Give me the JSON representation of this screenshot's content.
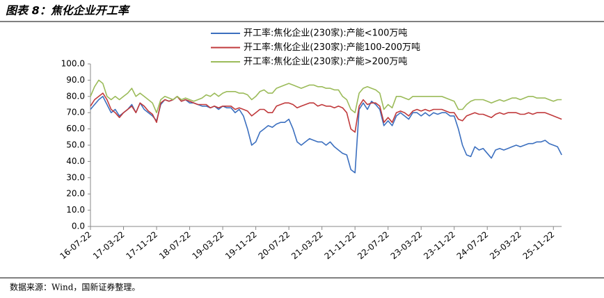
{
  "chart_data": {
    "type": "line",
    "title": "图表 8：焦化企业开工率",
    "source": "数据来源：Wind，国新证券整理。",
    "categories": [
      "16-07-22",
      null,
      null,
      null,
      null,
      null,
      null,
      null,
      "17-03-22",
      null,
      null,
      null,
      null,
      null,
      null,
      null,
      "17-11-22",
      null,
      null,
      null,
      null,
      null,
      null,
      null,
      "18-07-22",
      null,
      null,
      null,
      null,
      null,
      null,
      null,
      "19-03-22",
      null,
      null,
      null,
      null,
      null,
      null,
      null,
      "19-11-22",
      null,
      null,
      null,
      null,
      null,
      null,
      null,
      "20-07-22",
      null,
      null,
      null,
      null,
      null,
      null,
      null,
      "21-03-22",
      null,
      null,
      null,
      null,
      null,
      null,
      null,
      "21-11-22",
      null,
      null,
      null,
      null,
      null,
      null,
      null,
      "22-07-22",
      null,
      null,
      null,
      null,
      null,
      null,
      null,
      "23-03-22",
      null,
      null,
      null,
      null,
      null,
      null,
      null,
      "23-11-22",
      null,
      null,
      null,
      null,
      null,
      null,
      null,
      "24-07-22",
      null,
      null,
      null,
      null,
      null,
      null,
      null,
      "25-03-22",
      null,
      null,
      null,
      null,
      null,
      null,
      null,
      "25-11-22",
      null,
      null
    ],
    "series": [
      {
        "name": "开工率:焦化企业(230家):产能<100万吨",
        "color": "#3b6fbf",
        "values": [
          72,
          75,
          78,
          80,
          75,
          70,
          72,
          68,
          70,
          72,
          75,
          70,
          76,
          72,
          70,
          68,
          65,
          75,
          78,
          77,
          78,
          80,
          77,
          78,
          76,
          76,
          75,
          74,
          74,
          73,
          74,
          72,
          74,
          73,
          73,
          70,
          72,
          68,
          60,
          50,
          52,
          58,
          60,
          62,
          61,
          63,
          64,
          64,
          66,
          60,
          52,
          50,
          52,
          54,
          53,
          52,
          52,
          50,
          52,
          49,
          47,
          45,
          44,
          35,
          33,
          72,
          76,
          72,
          77,
          75,
          72,
          62,
          65,
          62,
          68,
          70,
          68,
          66,
          70,
          70,
          68,
          70,
          68,
          70,
          69,
          70,
          70,
          68,
          68,
          60,
          50,
          44,
          43,
          49,
          47,
          48,
          45,
          42,
          47,
          48,
          47,
          48,
          49,
          50,
          49,
          50,
          51,
          51,
          52,
          52,
          53,
          51,
          50,
          49,
          44
        ]
      },
      {
        "name": "开工率:焦化企业(230家):产能100-200万吨",
        "color": "#c0393b",
        "values": [
          74,
          78,
          80,
          82,
          78,
          72,
          70,
          67,
          70,
          72,
          74,
          70,
          76,
          74,
          71,
          69,
          64,
          76,
          78,
          77,
          78,
          80,
          77,
          78,
          77,
          76,
          75,
          75,
          75,
          73,
          74,
          73,
          74,
          74,
          74,
          72,
          73,
          72,
          71,
          68,
          70,
          72,
          72,
          70,
          70,
          74,
          75,
          76,
          76,
          75,
          73,
          74,
          75,
          76,
          76,
          74,
          75,
          74,
          74,
          73,
          74,
          73,
          70,
          60,
          58,
          74,
          78,
          75,
          76,
          76,
          74,
          64,
          67,
          64,
          70,
          71,
          70,
          68,
          71,
          72,
          71,
          72,
          71,
          72,
          72,
          72,
          71,
          70,
          70,
          66,
          65,
          68,
          69,
          70,
          69,
          69,
          68,
          67,
          69,
          70,
          69,
          70,
          70,
          70,
          69,
          69,
          70,
          69,
          70,
          70,
          70,
          69,
          68,
          67,
          66
        ]
      },
      {
        "name": "开工率:焦化企业(230家):产能>200万吨",
        "color": "#9bbb59",
        "values": [
          80,
          86,
          90,
          88,
          80,
          78,
          80,
          78,
          80,
          82,
          85,
          80,
          82,
          80,
          78,
          76,
          70,
          78,
          80,
          79,
          78,
          80,
          78,
          79,
          78,
          77,
          78,
          79,
          81,
          80,
          82,
          80,
          82,
          83,
          83,
          83,
          82,
          82,
          81,
          78,
          80,
          83,
          84,
          82,
          82,
          85,
          86,
          87,
          88,
          87,
          86,
          85,
          86,
          87,
          87,
          86,
          86,
          85,
          85,
          84,
          84,
          80,
          78,
          72,
          70,
          82,
          85,
          86,
          85,
          84,
          82,
          72,
          75,
          73,
          80,
          80,
          79,
          78,
          80,
          80,
          80,
          80,
          80,
          80,
          80,
          80,
          79,
          78,
          77,
          72,
          72,
          75,
          77,
          78,
          78,
          78,
          77,
          76,
          77,
          78,
          77,
          78,
          79,
          79,
          78,
          79,
          80,
          80,
          79,
          79,
          79,
          78,
          77,
          78,
          78
        ]
      }
    ],
    "ylim": [
      0,
      100
    ],
    "yticks": [
      {
        "value": 0,
        "label": "0.0"
      },
      {
        "value": 10,
        "label": "10.0"
      },
      {
        "value": 20,
        "label": "20.0"
      },
      {
        "value": 30,
        "label": "30.0"
      },
      {
        "value": 40,
        "label": "40.0"
      },
      {
        "value": 50,
        "label": "50.0"
      },
      {
        "value": 60,
        "label": "60.0"
      },
      {
        "value": 70,
        "label": "70.0"
      },
      {
        "value": 80,
        "label": "80.0"
      },
      {
        "value": 90,
        "label": "90.0"
      },
      {
        "value": 100,
        "label": "100.0"
      }
    ],
    "legend": "top"
  }
}
